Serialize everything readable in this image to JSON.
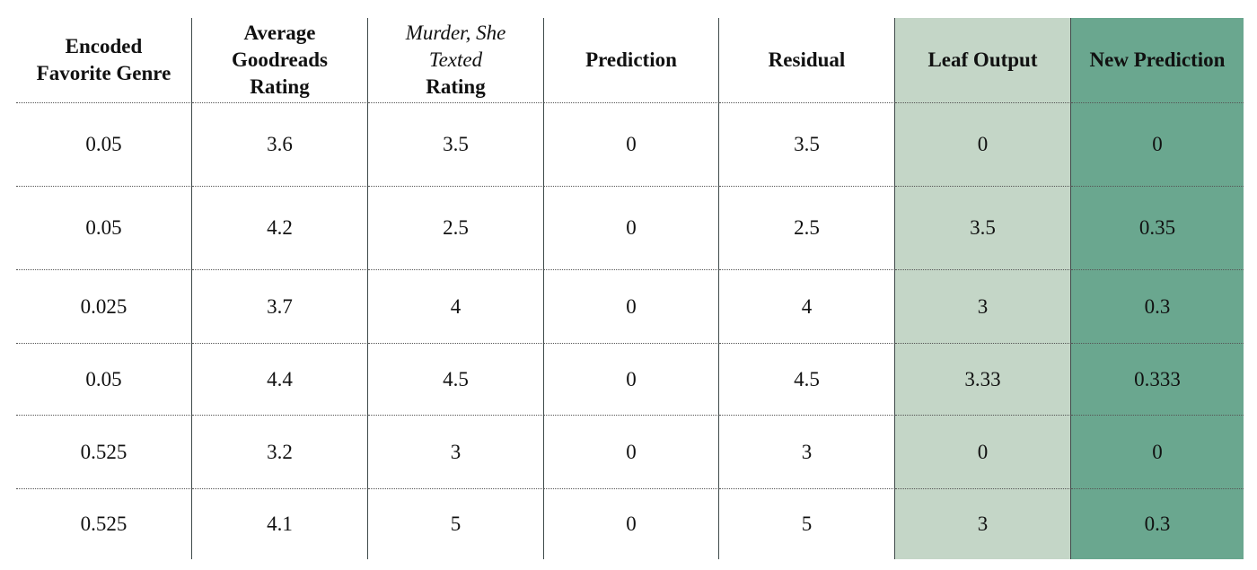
{
  "table": {
    "headers": {
      "encoded_favorite_genre": [
        "Encoded",
        "Favorite Genre"
      ],
      "average_goodreads_rating": [
        "Average",
        "Goodreads",
        "Rating"
      ],
      "murder_she_texted_rating": {
        "italic": [
          "Murder, She",
          "Texted"
        ],
        "plain": "Rating"
      },
      "prediction": "Prediction",
      "residual": "Residual",
      "leaf_output": "Leaf Output",
      "new_prediction": "New Prediction"
    },
    "rows": [
      {
        "genre": "0.05",
        "avg": "3.6",
        "msr": "3.5",
        "pred": "0",
        "resid": "3.5",
        "leaf": "0",
        "newpred": "0"
      },
      {
        "genre": "0.05",
        "avg": "4.2",
        "msr": "2.5",
        "pred": "0",
        "resid": "2.5",
        "leaf": "3.5",
        "newpred": "0.35"
      },
      {
        "genre": "0.025",
        "avg": "3.7",
        "msr": "4",
        "pred": "0",
        "resid": "4",
        "leaf": "3",
        "newpred": "0.3"
      },
      {
        "genre": "0.05",
        "avg": "4.4",
        "msr": "4.5",
        "pred": "0",
        "resid": "4.5",
        "leaf": "3.33",
        "newpred": "0.333"
      },
      {
        "genre": "0.525",
        "avg": "3.2",
        "msr": "3",
        "pred": "0",
        "resid": "3",
        "leaf": "0",
        "newpred": "0"
      },
      {
        "genre": "0.525",
        "avg": "4.1",
        "msr": "5",
        "pred": "0",
        "resid": "5",
        "leaf": "3",
        "newpred": "0.3"
      }
    ]
  },
  "colors": {
    "leaf_output_bg": "#c4d6c7",
    "new_prediction_bg": "#6aa78f",
    "text": "#111111"
  }
}
